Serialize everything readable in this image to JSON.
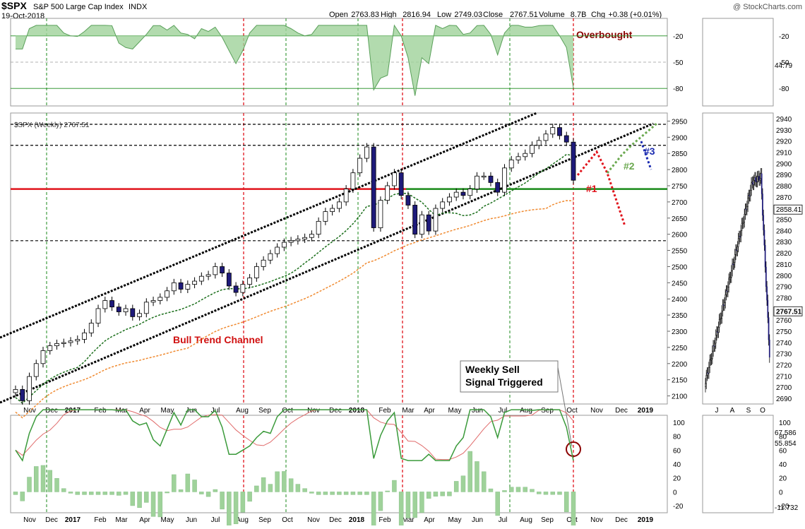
{
  "header": {
    "symbol": "$SPX",
    "name": "S&P 500 Large Cap Index",
    "exchange": "INDX",
    "date": "19-Oct-2018",
    "watermark": "@ StockCharts.com",
    "stats": [
      {
        "label": "Open",
        "value": "2763.83"
      },
      {
        "label": "High",
        "value": "2816.94"
      },
      {
        "label": "Low",
        "value": "2749.03"
      },
      {
        "label": "Close",
        "value": "2767.51"
      },
      {
        "label": "Volume",
        "value": "8.7B"
      },
      {
        "label": "Chg",
        "value": "+0.38 (+0.01%)"
      }
    ]
  },
  "colors": {
    "candle_fill": "#1e1a7a",
    "bull_candle": "#ffffff",
    "red_line": "#e0141c",
    "green_line": "#1a8a1a",
    "ma_short": "#1a6e1a",
    "ma_long": "#f08a30",
    "osc_fill": "#9fd29a",
    "macd_fast": "#3a9a3a",
    "macd_slow": "#e06a6a",
    "annot_red": "#8b0000",
    "scenario_green": "#6aa84f",
    "scenario_blue": "#1a2ab0"
  },
  "chart_data": [
    {
      "type": "area",
      "panel": "Relative strength oscillator (weekly)",
      "y_ticks": [
        "20",
        "50",
        "80"
      ],
      "last_value": "44.79",
      "annotation": "Overbought"
    },
    {
      "type": "line",
      "panel": "Weekly price",
      "label": "$SPX (Weekly) 2767.51",
      "x_ticks": [
        "Nov",
        "Dec",
        "2017",
        "Feb",
        "Mar",
        "Apr",
        "May",
        "Jun",
        "Jul",
        "Aug",
        "Sep",
        "Oct",
        "Nov",
        "Dec",
        "2018",
        "Feb",
        "Mar",
        "Apr",
        "May",
        "Jun",
        "Jul",
        "Aug",
        "Sep",
        "Oct",
        "Nov",
        "Dec",
        "2019"
      ],
      "y_ticks": [
        "2950",
        "2900",
        "2850",
        "2800",
        "2750",
        "2700",
        "2650",
        "2600",
        "2550",
        "2500",
        "2450",
        "2400",
        "2350",
        "2300",
        "2250",
        "2200",
        "2150",
        "2100"
      ],
      "ylim": [
        2075,
        2975
      ],
      "closes": [
        2120,
        2085,
        2160,
        2200,
        2240,
        2255,
        2262,
        2265,
        2270,
        2275,
        2295,
        2325,
        2370,
        2395,
        2375,
        2360,
        2370,
        2345,
        2355,
        2390,
        2395,
        2405,
        2425,
        2450,
        2430,
        2445,
        2455,
        2470,
        2475,
        2500,
        2480,
        2440,
        2420,
        2445,
        2465,
        2500,
        2520,
        2540,
        2560,
        2575,
        2580,
        2585,
        2590,
        2600,
        2640,
        2670,
        2680,
        2700,
        2740,
        2790,
        2835,
        2870,
        2620,
        2705,
        2750,
        2790,
        2720,
        2690,
        2600,
        2660,
        2610,
        2680,
        2700,
        2715,
        2730,
        2720,
        2740,
        2780,
        2780,
        2760,
        2730,
        2805,
        2830,
        2840,
        2850,
        2875,
        2890,
        2910,
        2930,
        2905,
        2885,
        2767
      ],
      "levels": [
        2940,
        2875,
        2740,
        2580
      ],
      "support_line": 2740,
      "annotations": [
        "Bull Trend Channel",
        "Weekly Sell\nSignal Triggered",
        "Overbought",
        "#1",
        "#2",
        "#3"
      ]
    },
    {
      "type": "line",
      "panel": "Weekly MACD-style oscillator",
      "y_ticks": [
        "100",
        "80",
        "60",
        "40",
        "20",
        "0",
        "-20"
      ],
      "last_values": [
        "67.586",
        "55.854",
        "-11.732"
      ]
    },
    {
      "type": "line",
      "panel": "Daily price (inset)",
      "x_ticks": [
        "J",
        "A",
        "S",
        "O"
      ],
      "y_ticks": [
        "2940",
        "2930",
        "2920",
        "2910",
        "2900",
        "2890",
        "2880",
        "2870",
        "2860",
        "2850",
        "2840",
        "2830",
        "2820",
        "2810",
        "2800",
        "2790",
        "2780",
        "2770",
        "2760",
        "2750",
        "2740",
        "2730",
        "2720",
        "2710",
        "2700",
        "2690"
      ],
      "ylim": [
        2685,
        2945
      ],
      "price_labels": [
        "2858.41",
        "2767.51"
      ]
    }
  ]
}
